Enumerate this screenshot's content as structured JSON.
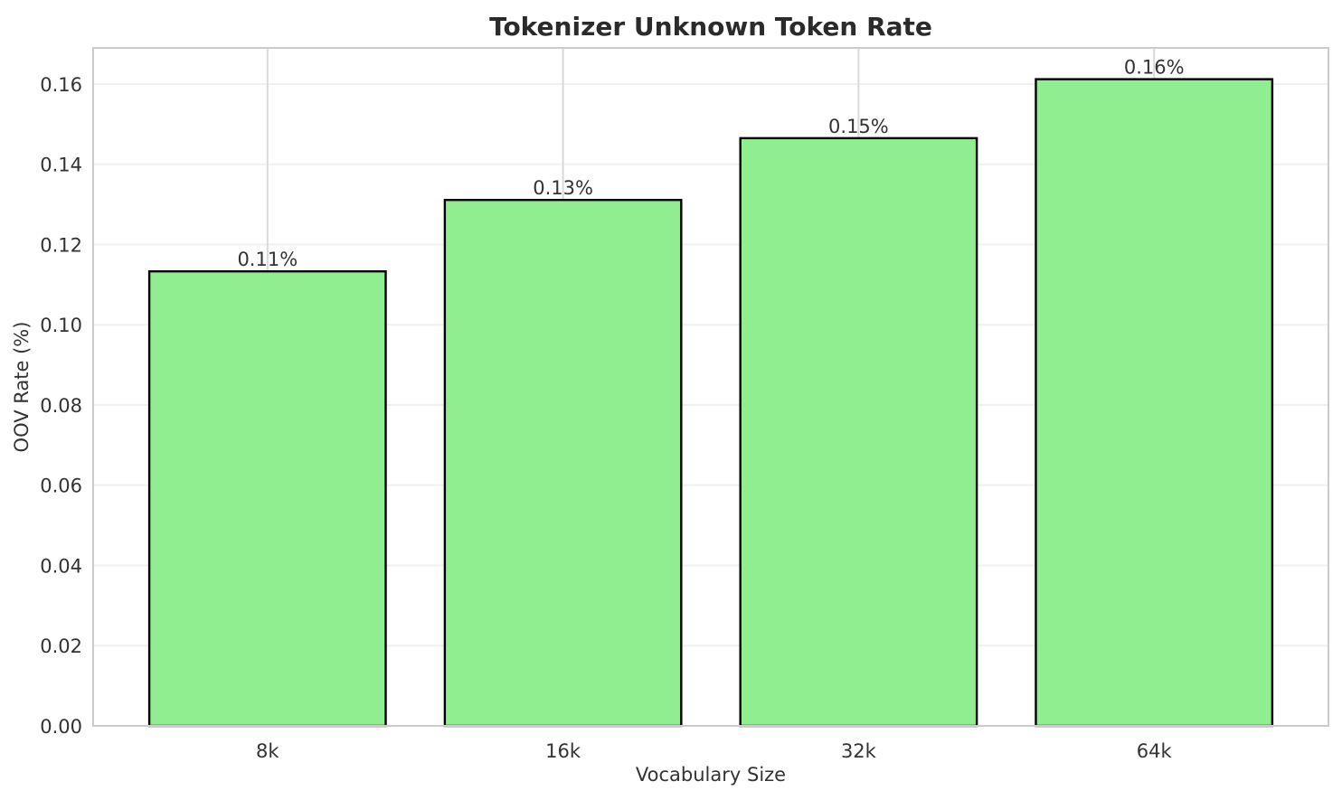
{
  "chart_data": {
    "type": "bar",
    "title": "Tokenizer Unknown Token Rate",
    "xlabel": "Vocabulary Size",
    "ylabel": "OOV Rate (%)",
    "categories": [
      "8k",
      "16k",
      "32k",
      "64k"
    ],
    "values": [
      0.1133,
      0.1311,
      0.1465,
      0.1612
    ],
    "bar_labels": [
      "0.11%",
      "0.13%",
      "0.15%",
      "0.16%"
    ],
    "ylim": [
      0,
      0.169
    ],
    "yticks": [
      0.0,
      0.02,
      0.04,
      0.06,
      0.08,
      0.1,
      0.12,
      0.14,
      0.16
    ],
    "ytick_labels": [
      "0.00",
      "0.02",
      "0.04",
      "0.06",
      "0.08",
      "0.10",
      "0.12",
      "0.14",
      "0.16"
    ],
    "legend": null,
    "grid": {
      "horizontal": true,
      "vertical": true
    },
    "colors": {
      "bar_fill": "#90EE90",
      "bar_edge": "#000000",
      "grid_horizontal": "#f0f0f0",
      "grid_vertical": "#d9d9d9",
      "spine": "#cccccc",
      "title_text": "#2b2b2b",
      "tick_text": "#333333",
      "background": "#ffffff"
    }
  }
}
